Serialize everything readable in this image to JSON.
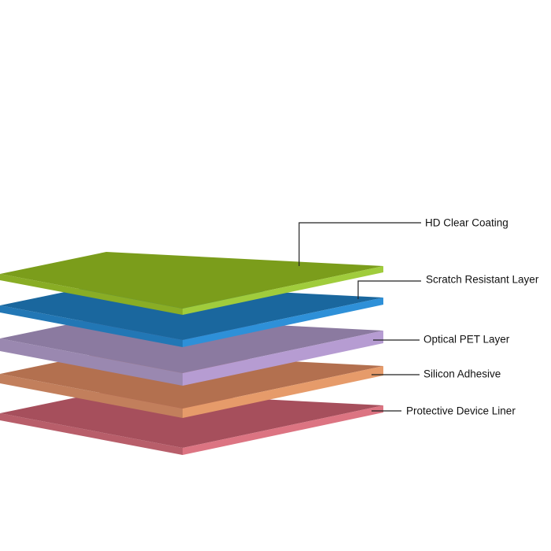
{
  "layers": [
    {
      "label": "HD Clear Coating"
    },
    {
      "label": "Scratch Resistant Layer"
    },
    {
      "label": "Optical PET Layer"
    },
    {
      "label": "Silicon Adhesive"
    },
    {
      "label": "Protective Device Liner"
    }
  ]
}
